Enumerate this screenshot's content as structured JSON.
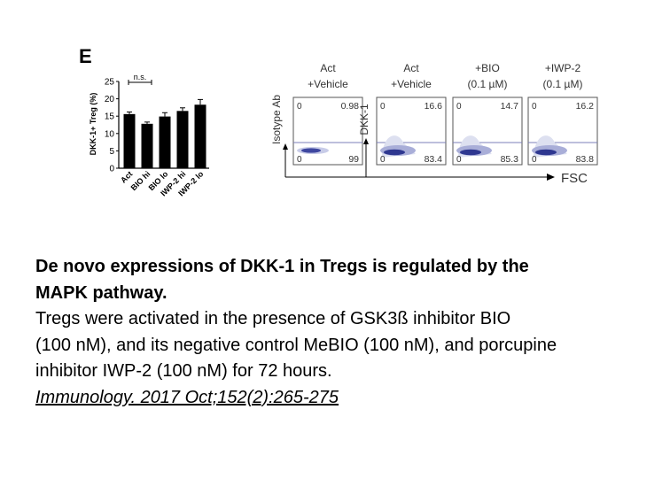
{
  "panel_label": "E",
  "bar_chart": {
    "chart_data": {
      "type": "bar",
      "ylabel": "DKK-1+ Treg (%)",
      "ylim": [
        0,
        25
      ],
      "yticks": [
        "0",
        "5",
        "10",
        "15",
        "20",
        "25"
      ],
      "categories": [
        "Act",
        "BIO hi",
        "BIO lo",
        "IWP-2 hi",
        "IWP-2 lo"
      ],
      "values": [
        15.6,
        12.8,
        14.9,
        16.5,
        18.3
      ],
      "errors": [
        0.6,
        0.5,
        1.1,
        0.9,
        1.5
      ],
      "annotation": "n.s."
    }
  },
  "flow_panels": {
    "x_axis_label": "FSC",
    "isotype_label": "Isotype Ab",
    "dkk_label": "DKK-1",
    "zero_label": "0",
    "panels": [
      {
        "title1": "Act",
        "title2": "+Vehicle",
        "top_value": "0.98",
        "bottom_value": "99"
      },
      {
        "title1": "Act",
        "title2": "+Vehicle",
        "top_value": "16.6",
        "bottom_value": "83.4"
      },
      {
        "title1": "+BIO",
        "title2": "(0.1 µM)",
        "top_value": "14.7",
        "bottom_value": "85.3"
      },
      {
        "title1": "+IWP-2",
        "title2": "(0.1 µM)",
        "top_value": "16.2",
        "bottom_value": "83.8"
      }
    ]
  },
  "caption": {
    "title_line1": "De novo expressions of DKK-1 in Tregs is regulated by the",
    "title_line2": "MAPK pathway.",
    "body_line1": "Tregs were activated in the presence of GSK3ß inhibitor BIO",
    "body_line2": "(100 nM), and its negative control MeBIO (100 nM), and porcupine",
    "body_line3": "inhibitor IWP-2 (100 nM) for 72 hours.",
    "citation": "Immunology. 2017 Oct;152(2):265-275"
  }
}
